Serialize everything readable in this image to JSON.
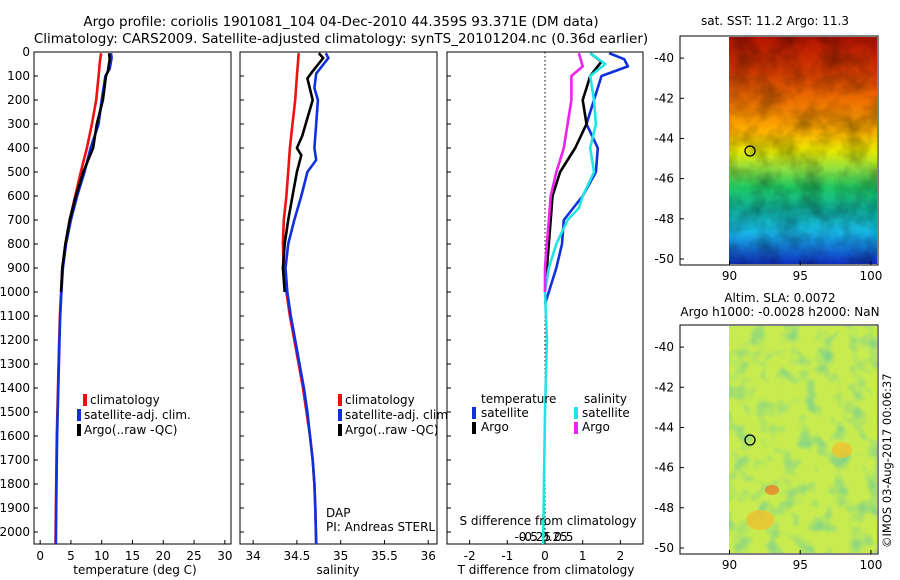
{
  "header": {
    "title_line1": "Argo profile: coriolis 1901081_104 04-Dec-2010 44.359S 93.371E (DM data)",
    "title_line2": "Climatology: CARS2009. Satellite-adjusted climatology: synTS_20101204.nc (0.36d earlier)"
  },
  "colors": {
    "climatology": "#ee1111",
    "satellite": "#1030dd",
    "argo": "#000000",
    "sat_salinity": "#22e4e4",
    "argo_salinity": "#ee22ee"
  },
  "chart_data": [
    {
      "type": "line",
      "id": "temperature",
      "xlabel": "temperature (deg C)",
      "ylabel": "",
      "xlim": [
        -1,
        31
      ],
      "ylim": [
        2050,
        0
      ],
      "xticks": [
        0,
        5,
        10,
        15,
        20,
        25,
        30
      ],
      "yticks": [
        0,
        100,
        200,
        300,
        400,
        500,
        600,
        700,
        800,
        900,
        1000,
        1100,
        1200,
        1300,
        1400,
        1500,
        1600,
        1700,
        1800,
        1900,
        2000
      ],
      "legend": {
        "position": "lower-middle",
        "entries": [
          "climatology",
          "satellite-adj. clim.",
          "Argo(..raw -QC)"
        ]
      },
      "series": [
        {
          "name": "climatology",
          "color_key": "climatology",
          "points": [
            [
              9.9,
              5
            ],
            [
              9.7,
              40
            ],
            [
              9.5,
              100
            ],
            [
              9.1,
              200
            ],
            [
              8.4,
              300
            ],
            [
              7.6,
              400
            ],
            [
              6.6,
              500
            ],
            [
              5.7,
              600
            ],
            [
              4.8,
              700
            ],
            [
              4.1,
              800
            ],
            [
              3.6,
              900
            ],
            [
              3.4,
              1000
            ],
            [
              3.2,
              1100
            ],
            [
              3.1,
              1200
            ],
            [
              3.0,
              1300
            ],
            [
              2.9,
              1400
            ],
            [
              2.8,
              1500
            ],
            [
              2.7,
              1600
            ],
            [
              2.65,
              1700
            ],
            [
              2.6,
              1800
            ],
            [
              2.55,
              1900
            ],
            [
              2.5,
              2050
            ]
          ]
        },
        {
          "name": "satellite-adj. clim.",
          "color_key": "satellite",
          "points": [
            [
              11.5,
              5
            ],
            [
              11.6,
              25
            ],
            [
              11.3,
              70
            ],
            [
              10.6,
              100
            ],
            [
              10.0,
              200
            ],
            [
              9.5,
              300
            ],
            [
              8.2,
              400
            ],
            [
              7.2,
              500
            ],
            [
              6.0,
              600
            ],
            [
              5.0,
              700
            ],
            [
              4.2,
              800
            ],
            [
              3.7,
              900
            ],
            [
              3.45,
              1000
            ],
            [
              3.25,
              1100
            ],
            [
              3.15,
              1200
            ],
            [
              3.05,
              1300
            ],
            [
              2.95,
              1400
            ],
            [
              2.85,
              1500
            ],
            [
              2.75,
              1600
            ],
            [
              2.7,
              1700
            ],
            [
              2.65,
              1800
            ],
            [
              2.6,
              1900
            ],
            [
              2.55,
              2050
            ]
          ]
        },
        {
          "name": "Argo(..raw -QC)",
          "color_key": "argo",
          "points": [
            [
              11.2,
              5
            ],
            [
              11.3,
              30
            ],
            [
              11.0,
              80
            ],
            [
              10.7,
              100
            ],
            [
              10.2,
              200
            ],
            [
              9.2,
              300
            ],
            [
              8.6,
              400
            ],
            [
              7.0,
              500
            ],
            [
              5.8,
              600
            ],
            [
              4.8,
              700
            ],
            [
              4.1,
              800
            ],
            [
              3.6,
              900
            ],
            [
              3.4,
              1000
            ]
          ]
        }
      ]
    },
    {
      "type": "line",
      "id": "salinity",
      "xlabel": "salinity",
      "xlim": [
        33.85,
        36.1
      ],
      "ylim": [
        2050,
        0
      ],
      "xticks": [
        34,
        34.5,
        35,
        35.5,
        36
      ],
      "legend": {
        "position": "lower-middle",
        "entries": [
          "climatology",
          "satellite-adj. clim.",
          "Argo(..raw -QC)"
        ]
      },
      "annotations": [
        "DAP",
        "PI: Andreas STERL"
      ],
      "series": [
        {
          "name": "climatology",
          "color_key": "climatology",
          "points": [
            [
              34.52,
              5
            ],
            [
              34.5,
              100
            ],
            [
              34.48,
              200
            ],
            [
              34.45,
              300
            ],
            [
              34.42,
              400
            ],
            [
              34.4,
              500
            ],
            [
              34.38,
              600
            ],
            [
              34.35,
              700
            ],
            [
              34.34,
              800
            ],
            [
              34.35,
              900
            ],
            [
              34.38,
              1000
            ],
            [
              34.42,
              1100
            ],
            [
              34.47,
              1200
            ],
            [
              34.52,
              1300
            ],
            [
              34.57,
              1400
            ],
            [
              34.61,
              1500
            ],
            [
              34.65,
              1600
            ],
            [
              34.68,
              1700
            ],
            [
              34.7,
              1800
            ],
            [
              34.71,
              1900
            ],
            [
              34.72,
              2050
            ]
          ]
        },
        {
          "name": "satellite-adj. clim.",
          "color_key": "satellite",
          "points": [
            [
              34.83,
              5
            ],
            [
              34.86,
              25
            ],
            [
              34.72,
              90
            ],
            [
              34.7,
              150
            ],
            [
              34.74,
              200
            ],
            [
              34.72,
              300
            ],
            [
              34.7,
              400
            ],
            [
              34.72,
              450
            ],
            [
              34.62,
              500
            ],
            [
              34.55,
              600
            ],
            [
              34.47,
              700
            ],
            [
              34.4,
              800
            ],
            [
              34.37,
              900
            ],
            [
              34.39,
              1000
            ],
            [
              34.43,
              1100
            ],
            [
              34.48,
              1200
            ],
            [
              34.53,
              1300
            ],
            [
              34.58,
              1400
            ],
            [
              34.62,
              1500
            ],
            [
              34.65,
              1600
            ],
            [
              34.68,
              1700
            ],
            [
              34.7,
              1800
            ],
            [
              34.71,
              1900
            ],
            [
              34.72,
              2050
            ]
          ]
        },
        {
          "name": "Argo(..raw -QC)",
          "color_key": "argo",
          "points": [
            [
              34.75,
              5
            ],
            [
              34.8,
              25
            ],
            [
              34.68,
              80
            ],
            [
              34.62,
              110
            ],
            [
              34.68,
              200
            ],
            [
              34.6,
              300
            ],
            [
              34.56,
              350
            ],
            [
              34.5,
              400
            ],
            [
              34.55,
              430
            ],
            [
              34.5,
              500
            ],
            [
              34.45,
              600
            ],
            [
              34.4,
              700
            ],
            [
              34.36,
              800
            ],
            [
              34.34,
              900
            ],
            [
              34.36,
              1000
            ]
          ]
        }
      ]
    },
    {
      "type": "line",
      "id": "difference",
      "xlabel": "T difference from climatology",
      "xlabel_top": "S difference from climatology",
      "xlim": [
        -2.6,
        2.6
      ],
      "ylim": [
        2050,
        0
      ],
      "xticks": [
        -2,
        -1,
        0,
        1,
        2
      ],
      "xticks_top": [
        -0.5,
        -0.25,
        0,
        0.25,
        0.5
      ],
      "legend": {
        "position": "lower",
        "groups": [
          {
            "title": "temperature",
            "entries": [
              "satellite",
              "Argo"
            ]
          },
          {
            "title": "salinity",
            "entries": [
              "satellite",
              "Argo"
            ]
          }
        ]
      },
      "series": [
        {
          "name": "satellite",
          "group": "temperature",
          "color_key": "satellite",
          "points": [
            [
              1.7,
              5
            ],
            [
              2.1,
              30
            ],
            [
              2.2,
              60
            ],
            [
              1.5,
              100
            ],
            [
              1.3,
              200
            ],
            [
              1.1,
              300
            ],
            [
              1.4,
              400
            ],
            [
              1.35,
              500
            ],
            [
              1.0,
              600
            ],
            [
              0.5,
              700
            ],
            [
              0.45,
              800
            ],
            [
              0.3,
              900
            ],
            [
              0.1,
              1000
            ],
            [
              0.0,
              1050
            ]
          ]
        },
        {
          "name": "Argo",
          "group": "temperature",
          "color_key": "argo",
          "points": [
            [
              1.2,
              5
            ],
            [
              1.5,
              40
            ],
            [
              1.2,
              100
            ],
            [
              1.1,
              150
            ],
            [
              1.0,
              200
            ],
            [
              1.1,
              300
            ],
            [
              0.8,
              400
            ],
            [
              0.6,
              450
            ],
            [
              0.4,
              500
            ],
            [
              0.2,
              600
            ],
            [
              0.15,
              700
            ],
            [
              0.1,
              800
            ],
            [
              0.05,
              900
            ],
            [
              0.0,
              1000
            ]
          ]
        },
        {
          "name": "satellite",
          "group": "salinity",
          "color_key": "sat_salinity",
          "points": [
            [
              1.2,
              5
            ],
            [
              1.6,
              50
            ],
            [
              1.2,
              100
            ],
            [
              1.3,
              200
            ],
            [
              1.35,
              300
            ],
            [
              1.2,
              400
            ],
            [
              1.3,
              500
            ],
            [
              1.0,
              600
            ],
            [
              0.9,
              650
            ],
            [
              0.6,
              700
            ],
            [
              0.3,
              800
            ],
            [
              0.1,
              900
            ],
            [
              0.0,
              1000
            ],
            [
              0.05,
              1200
            ],
            [
              0.0,
              1500
            ],
            [
              -0.05,
              2050
            ]
          ]
        },
        {
          "name": "Argo",
          "group": "salinity",
          "color_key": "argo_salinity",
          "points": [
            [
              0.9,
              5
            ],
            [
              1.0,
              60
            ],
            [
              0.7,
              100
            ],
            [
              0.7,
              200
            ],
            [
              0.6,
              300
            ],
            [
              0.5,
              400
            ],
            [
              0.4,
              450
            ],
            [
              0.3,
              500
            ],
            [
              0.15,
              600
            ],
            [
              0.1,
              700
            ],
            [
              0.05,
              800
            ],
            [
              0.0,
              900
            ],
            [
              0.0,
              1000
            ]
          ]
        }
      ]
    },
    {
      "type": "heatmap",
      "id": "sst-map",
      "title": "sat. SST: 11.2 Argo: 11.3",
      "xlim": [
        86.5,
        100.5
      ],
      "ylim": [
        -50.3,
        -38.9
      ],
      "xticks": [
        90,
        95,
        100
      ],
      "yticks": [
        -40,
        -42,
        -44,
        -46,
        -48,
        -50
      ],
      "data_extent_x": [
        90,
        100.5
      ],
      "marker": {
        "lon": 93.371,
        "lat": -44.359
      },
      "grid": false
    },
    {
      "type": "heatmap",
      "id": "sla-map",
      "title_line1": "Altim. SLA: 0.0072",
      "title_line2": "Argo h1000: -0.0028 h2000: NaN",
      "xlim": [
        86.5,
        100.5
      ],
      "ylim": [
        -50.3,
        -38.9
      ],
      "xticks": [
        90,
        95,
        100
      ],
      "yticks": [
        -40,
        -42,
        -44,
        -46,
        -48,
        -50
      ],
      "data_extent_x": [
        90,
        100.5
      ],
      "marker": {
        "lon": 93.371,
        "lat": -44.359
      },
      "grid": false
    }
  ],
  "watermark": "©IMOS 03-Aug-2017 00:06:37"
}
